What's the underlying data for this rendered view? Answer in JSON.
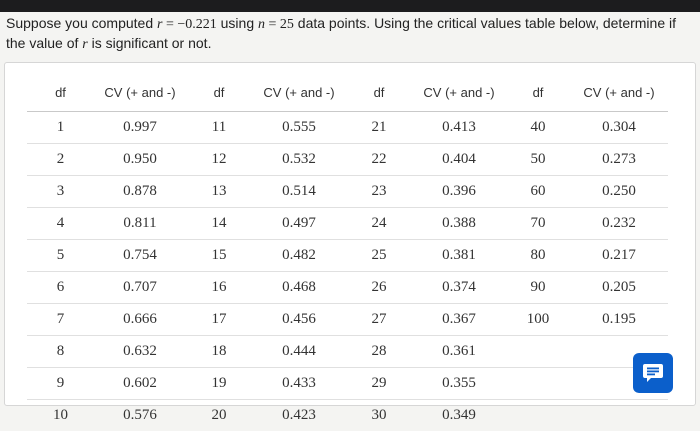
{
  "question": {
    "p1": "Suppose you computed ",
    "r": "r",
    "eq1": " = −0.221",
    "p2": " using ",
    "n": "n",
    "eq2": " = 25",
    "p3": " data points. Using the critical values table below, determine if the value of ",
    "r2": "r",
    "p4": " is significant or not."
  },
  "table": {
    "headers": [
      "df",
      "CV (+ and -)",
      "df",
      "CV (+ and -)",
      "df",
      "CV (+ and -)",
      "df",
      "CV (+ and -)"
    ],
    "rows": [
      [
        "1",
        "0.997",
        "11",
        "0.555",
        "21",
        "0.413",
        "40",
        "0.304"
      ],
      [
        "2",
        "0.950",
        "12",
        "0.532",
        "22",
        "0.404",
        "50",
        "0.273"
      ],
      [
        "3",
        "0.878",
        "13",
        "0.514",
        "23",
        "0.396",
        "60",
        "0.250"
      ],
      [
        "4",
        "0.811",
        "14",
        "0.497",
        "24",
        "0.388",
        "70",
        "0.232"
      ],
      [
        "5",
        "0.754",
        "15",
        "0.482",
        "25",
        "0.381",
        "80",
        "0.217"
      ],
      [
        "6",
        "0.707",
        "16",
        "0.468",
        "26",
        "0.374",
        "90",
        "0.205"
      ],
      [
        "7",
        "0.666",
        "17",
        "0.456",
        "27",
        "0.367",
        "100",
        "0.195"
      ],
      [
        "8",
        "0.632",
        "18",
        "0.444",
        "28",
        "0.361",
        "",
        ""
      ],
      [
        "9",
        "0.602",
        "19",
        "0.433",
        "29",
        "0.355",
        "",
        ""
      ],
      [
        "10",
        "0.576",
        "20",
        "0.423",
        "30",
        "0.349",
        "",
        ""
      ]
    ]
  },
  "chat_button": {
    "icon": "chat-icon",
    "color": "#0b5fcb"
  }
}
